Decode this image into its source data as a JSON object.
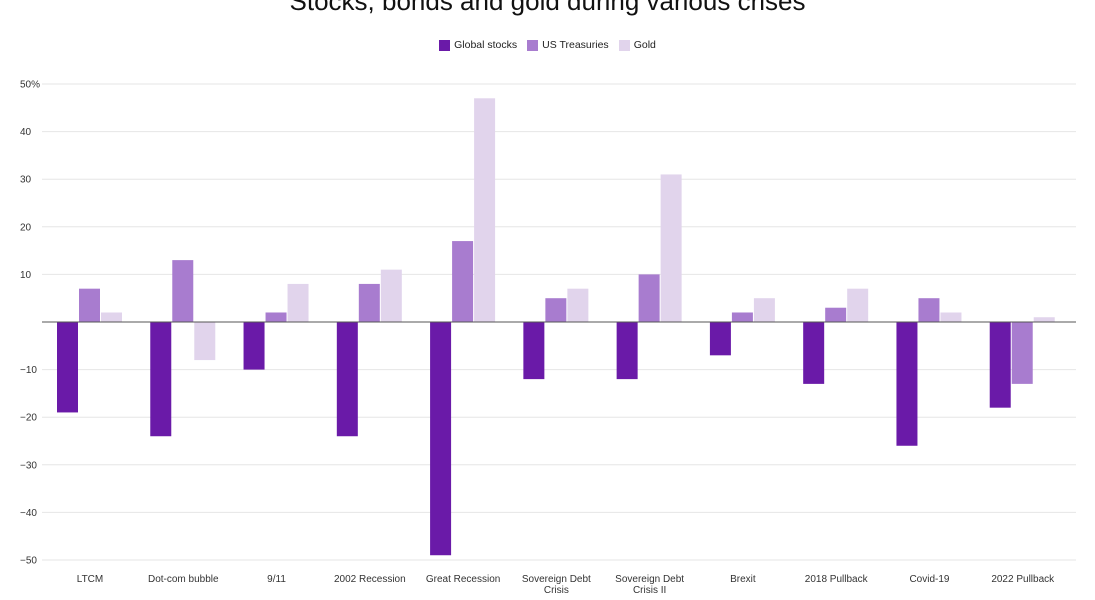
{
  "chart_data": {
    "type": "bar",
    "title": "Stocks, bonds and gold during various crises",
    "xlabel": "",
    "ylabel": "",
    "ylim": [
      -50,
      50
    ],
    "yticks": [
      50,
      40,
      30,
      20,
      10,
      -10,
      -20,
      -30,
      -40,
      -50
    ],
    "ytick_labels": [
      "50%",
      "40",
      "30",
      "20",
      "10",
      "−10",
      "−20",
      "−30",
      "−40",
      "−50"
    ],
    "grid": true,
    "legend_position": "top-center",
    "categories": [
      [
        "LTCM"
      ],
      [
        "Dot-com bubble"
      ],
      [
        "9/11"
      ],
      [
        "2002 Recession"
      ],
      [
        "Great Recession"
      ],
      [
        "Sovereign Debt",
        "Crisis"
      ],
      [
        "Sovereign Debt",
        "Crisis II"
      ],
      [
        "Brexit"
      ],
      [
        "2018 Pullback"
      ],
      [
        "Covid-19"
      ],
      [
        "2022 Pullback"
      ]
    ],
    "series": [
      {
        "name": "Global stocks",
        "color": "#6a1aa8",
        "values": [
          -19,
          -24,
          -10,
          -24,
          -49,
          -12,
          -12,
          -7,
          -13,
          -26,
          -18
        ]
      },
      {
        "name": "US Treasuries",
        "color": "#a87ccf",
        "values": [
          7,
          13,
          2,
          8,
          17,
          5,
          10,
          2,
          3,
          5,
          -13
        ]
      },
      {
        "name": "Gold",
        "color": "#e1d4ec",
        "values": [
          2,
          -8,
          8,
          11,
          47,
          7,
          31,
          5,
          7,
          2,
          1
        ]
      }
    ]
  }
}
